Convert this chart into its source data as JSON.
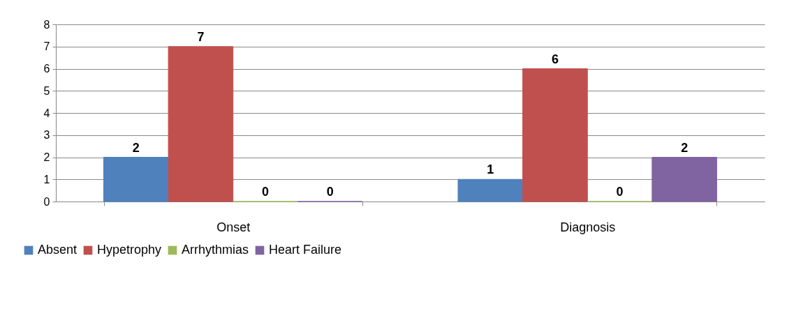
{
  "chart_data": {
    "type": "bar",
    "categories": [
      "Onset",
      "Diagnosis"
    ],
    "series": [
      {
        "name": "Absent",
        "color": "#4f81bd",
        "values": [
          2,
          1
        ]
      },
      {
        "name": "Hypetrophy",
        "color": "#c0504d",
        "values": [
          7,
          6
        ]
      },
      {
        "name": "Arrhythmias",
        "color": "#9bbb59",
        "values": [
          0,
          0
        ]
      },
      {
        "name": "Heart Failure",
        "color": "#8064a2",
        "values": [
          0,
          2
        ]
      }
    ],
    "ylim": [
      0,
      8
    ],
    "yticks": [
      0,
      1,
      2,
      3,
      4,
      5,
      6,
      7,
      8
    ],
    "grid": "y",
    "legend": "bottom",
    "data_labels": true
  }
}
